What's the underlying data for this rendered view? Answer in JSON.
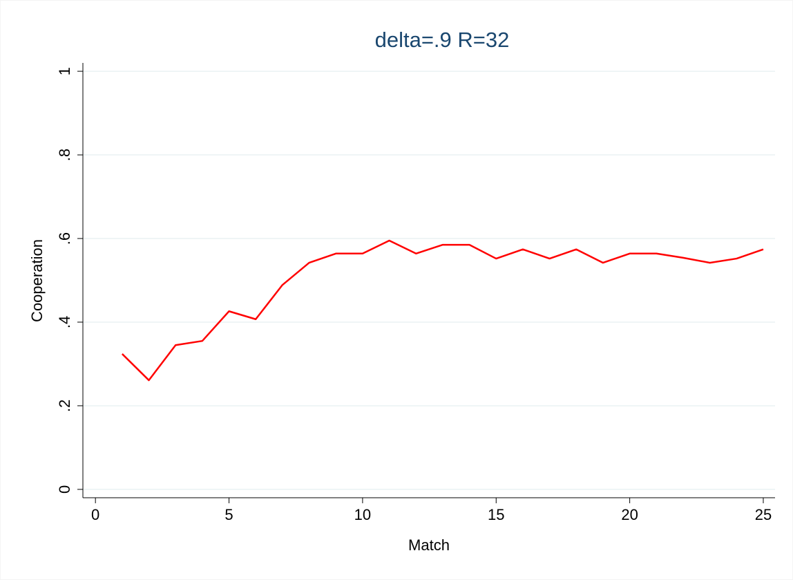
{
  "chart_data": {
    "type": "line",
    "title": "delta=.9 R=32",
    "x_label": "Match",
    "y_label": "Cooperation",
    "x": [
      1,
      2,
      3,
      4,
      5,
      6,
      7,
      8,
      9,
      10,
      11,
      12,
      13,
      14,
      15,
      16,
      17,
      18,
      19,
      20,
      21,
      22,
      23,
      24,
      25
    ],
    "series": [
      {
        "name": "Cooperation",
        "color": "#ff0000",
        "values": [
          0.324,
          0.261,
          0.345,
          0.355,
          0.426,
          0.407,
          0.489,
          0.542,
          0.564,
          0.564,
          0.595,
          0.564,
          0.585,
          0.585,
          0.552,
          0.574,
          0.552,
          0.574,
          0.542,
          0.564,
          0.564,
          0.554,
          0.542,
          0.552,
          0.574
        ]
      }
    ],
    "xlim": [
      -0.47,
      25.44
    ],
    "xticks": [
      0,
      5,
      10,
      15,
      20,
      25
    ],
    "ylim": [
      -0.02,
      1.02
    ],
    "yticks": [
      0,
      {
        "value": 0.2,
        "label": ".2"
      },
      {
        "value": 0.4,
        "label": ".4"
      },
      {
        "value": 0.6,
        "label": ".6"
      },
      {
        "value": 0.8,
        "label": ".8"
      },
      1
    ],
    "grid": true
  }
}
